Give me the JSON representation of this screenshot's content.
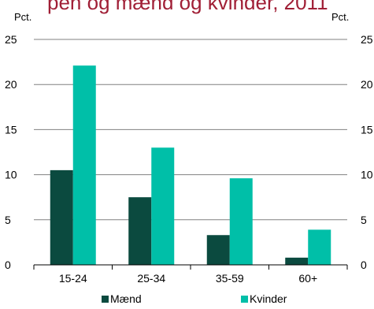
{
  "chart_data": {
    "type": "bar",
    "title": "pen og mænd og kvinder, 2011",
    "unit_left": "Pct.",
    "unit_right": "Pct.",
    "categories": [
      "15-24",
      "25-34",
      "35-59",
      "60+"
    ],
    "series": [
      {
        "name": "Mænd",
        "color": "#0b4a3f",
        "values": [
          10.5,
          7.5,
          3.3,
          0.8
        ]
      },
      {
        "name": "Kvinder",
        "color": "#00bfa8",
        "values": [
          22.1,
          13.0,
          9.6,
          3.9
        ]
      }
    ],
    "ylim": [
      0,
      25
    ],
    "yticks": [
      0,
      5,
      10,
      15,
      20,
      25
    ],
    "grid": true,
    "legend": "bottom",
    "colors": {
      "title": "#a01f36",
      "grid": "#808080",
      "axis": "#000000"
    }
  }
}
